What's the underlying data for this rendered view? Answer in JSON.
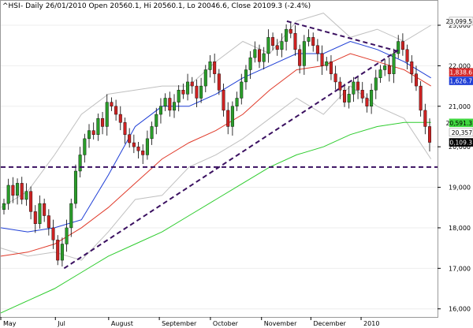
{
  "header": {
    "symbol": "^HSI",
    "info": "- Daily 26/01/2010 Open 20560.1, Hi 20560.1, Lo 20046.6, Close 20109.3 (-2.4%)"
  },
  "chart_data": {
    "type": "candlestick",
    "y_ticks": [
      "16,000",
      "17,000",
      "18,000",
      "19,000",
      "20,000",
      "21,000",
      "22,000",
      "23,000"
    ],
    "y_tick_values": [
      16000,
      17000,
      18000,
      19000,
      20000,
      21000,
      22000,
      23000
    ],
    "x_ticks": [
      "May",
      "Jul",
      "August",
      "September",
      "October",
      "November",
      "December",
      "2010"
    ],
    "x_tick_fractions": [
      0.0,
      0.125,
      0.247,
      0.363,
      0.48,
      0.597,
      0.71,
      0.825
    ],
    "ylim": [
      15800,
      23350
    ],
    "price_tags": [
      {
        "label": "23,099.5",
        "value": 23100,
        "bg": "#ffffff",
        "fg": "#000000"
      },
      {
        "label": "21,838.6",
        "value": 21838,
        "bg": "#d62a2a",
        "fg": "#ffffff"
      },
      {
        "label": "21,626.7",
        "value": 21627,
        "bg": "#1f3fd6",
        "fg": "#ffffff"
      },
      {
        "label": "20,591.3",
        "value": 20591,
        "bg": "#3fd63f",
        "fg": "#000000"
      },
      {
        "label": "20,357",
        "value": 20357,
        "bg": "#ffffff",
        "fg": "#000000"
      },
      {
        "label": "20,109.3",
        "value": 20109,
        "bg": "#000000",
        "fg": "#ffffff"
      }
    ],
    "horizontal_level": 19500,
    "trendlines": [
      {
        "from": [
          0.145,
          17000
        ],
        "to": [
          0.912,
          22400
        ]
      },
      {
        "from": [
          0.655,
          23100
        ],
        "to": [
          0.912,
          22350
        ]
      }
    ],
    "bollinger_upper": [
      18500,
      18900,
      19800,
      20800,
      21300,
      21400,
      21500,
      21500,
      22100,
      22600,
      22300,
      23100,
      23300,
      22700,
      22900,
      22600,
      23000
    ],
    "bollinger_lower": [
      17500,
      17300,
      17400,
      17200,
      17900,
      18700,
      18800,
      19500,
      19800,
      20200,
      20700,
      21200,
      20800,
      21500,
      21000,
      20700,
      19700
    ],
    "sma_fast": [
      18000,
      17900,
      18000,
      18200,
      19300,
      20500,
      21000,
      21000,
      21300,
      21700,
      22000,
      22300,
      22300,
      22600,
      22400,
      22100,
      21700
    ],
    "sma_mid": [
      17300,
      17400,
      17600,
      18000,
      18500,
      19100,
      19700,
      20100,
      20400,
      20800,
      21400,
      21900,
      22000,
      22300,
      22100,
      21900,
      21500
    ],
    "sma_slow": [
      15900,
      16200,
      16500,
      16900,
      17300,
      17600,
      17900,
      18300,
      18700,
      19100,
      19500,
      19800,
      20000,
      20300,
      20500,
      20600,
      20600
    ],
    "closes": [
      18600,
      19050,
      18800,
      19100,
      18700,
      18900,
      18400,
      18100,
      18600,
      18300,
      18000,
      17700,
      17200,
      17600,
      18000,
      18600,
      19400,
      19800,
      20200,
      20400,
      20300,
      20700,
      20500,
      21100,
      21000,
      20800,
      20600,
      20300,
      20100,
      20000,
      19900,
      19800,
      20200,
      20500,
      20800,
      21000,
      21200,
      20900,
      21100,
      21400,
      21300,
      21600,
      21500,
      21200,
      21500,
      21900,
      22100,
      21800,
      21400,
      20900,
      20500,
      21000,
      21200,
      21600,
      21900,
      22200,
      22400,
      22100,
      22300,
      22700,
      22500,
      22400,
      22600,
      22900,
      22800,
      22400,
      22000,
      22600,
      22700,
      22500,
      22300,
      22000,
      22100,
      21800,
      21600,
      21400,
      21100,
      21300,
      21600,
      21400,
      21200,
      21000,
      21400,
      21700,
      21900,
      22000,
      21800,
      22300,
      22600,
      22400,
      22100,
      21800,
      21500,
      20900,
      20500,
      20109
    ]
  }
}
